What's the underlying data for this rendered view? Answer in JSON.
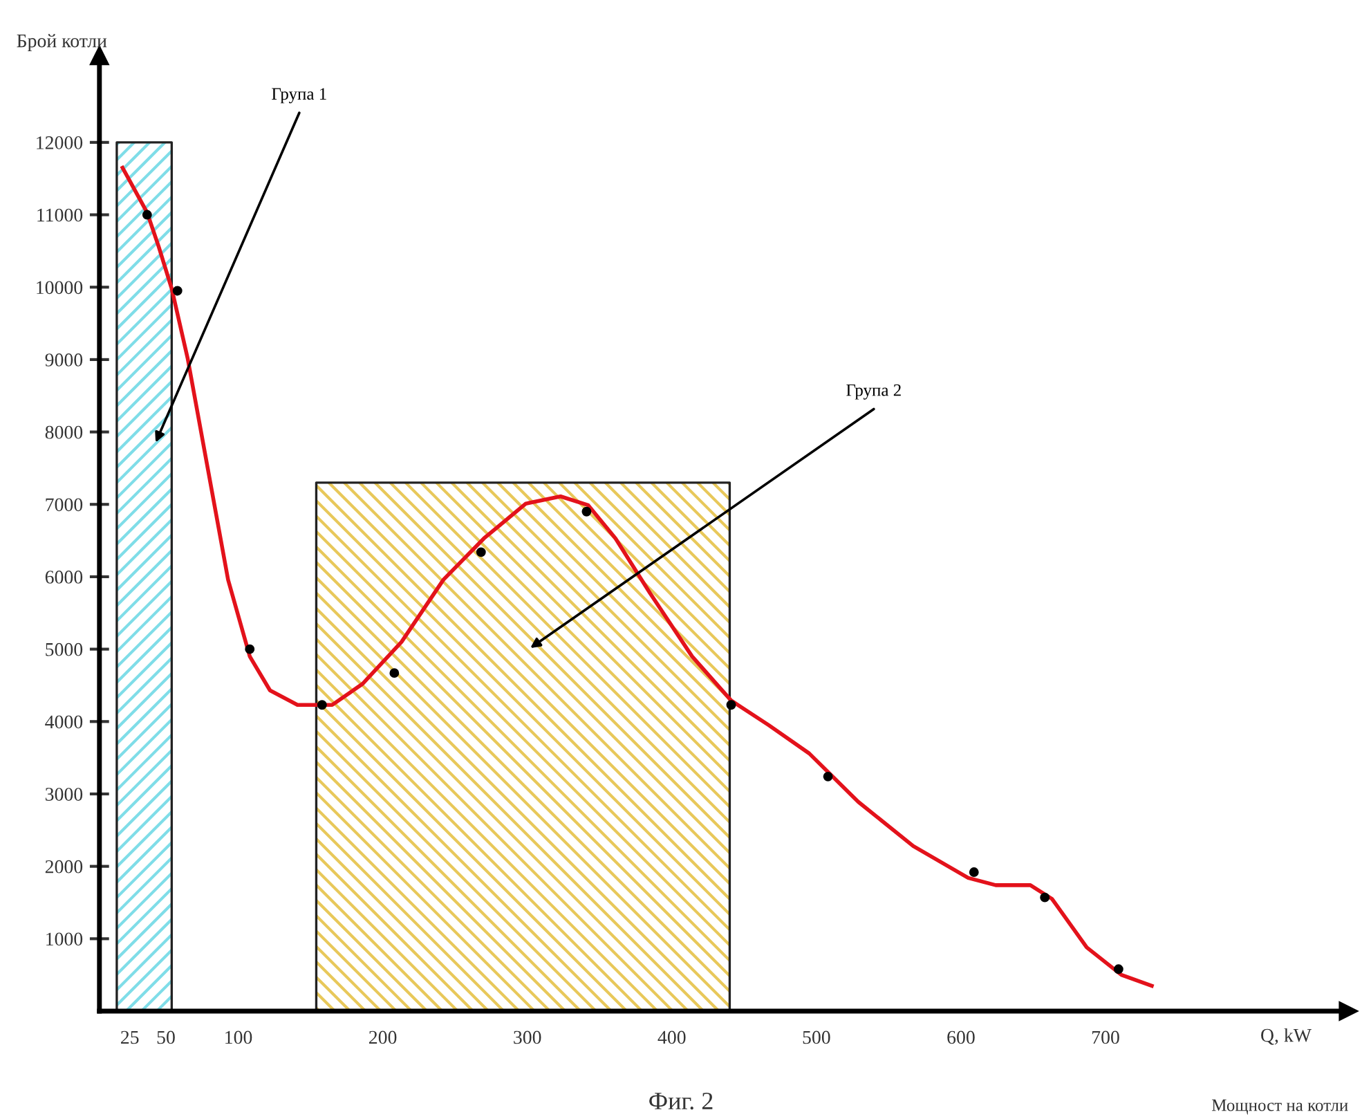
{
  "chart_data": {
    "type": "line",
    "xlabel": "Q, kW",
    "ylabel": "Брой котли",
    "xlim": [
      4,
      868
    ],
    "ylim": [
      0,
      13200
    ],
    "xticks": [
      25,
      50,
      100,
      200,
      300,
      400,
      500,
      600,
      700
    ],
    "yticks": [
      1000,
      2000,
      3000,
      4000,
      5000,
      6000,
      7000,
      8000,
      9000,
      10000,
      11000,
      12000
    ],
    "grid": false,
    "series": [
      {
        "type": "area",
        "color": "#7fdde8",
        "x": [
          16,
          54
        ],
        "values": [
          12000,
          12000
        ]
      },
      {
        "type": "area",
        "color": "#e8c85a",
        "x": [
          154,
          440
        ],
        "values": [
          7300,
          7300
        ]
      },
      {
        "color": "#e3121b",
        "line_style": "solid",
        "marker": "none",
        "x": [
          20,
          37,
          45,
          54,
          65,
          79,
          93,
          108,
          122,
          141,
          165,
          186,
          213,
          242,
          270,
          299,
          323,
          342,
          361,
          385,
          414,
          441,
          467,
          495,
          529,
          567,
          605,
          624,
          648,
          663,
          687,
          711,
          732
        ],
        "values": [
          11650,
          11030,
          10560,
          9980,
          9020,
          7490,
          5960,
          4900,
          4430,
          4230,
          4230,
          4520,
          5100,
          5960,
          6530,
          7010,
          7110,
          6990,
          6530,
          5770,
          4900,
          4290,
          3950,
          3560,
          2890,
          2280,
          1840,
          1740,
          1740,
          1550,
          880,
          500,
          350
        ]
      },
      {
        "type": "scatter",
        "color": "#000000",
        "marker": "circle",
        "x": [
          37,
          58,
          108,
          158,
          208,
          268,
          341,
          441,
          508,
          609,
          658,
          709
        ],
        "values": [
          11000,
          9950,
          5000,
          4230,
          4670,
          6340,
          6900,
          4230,
          3240,
          1920,
          1570,
          580
        ]
      }
    ],
    "annotations": [
      "Група 1",
      "Група 2",
      "Мощност на котли",
      "Фиг. 2"
    ]
  }
}
